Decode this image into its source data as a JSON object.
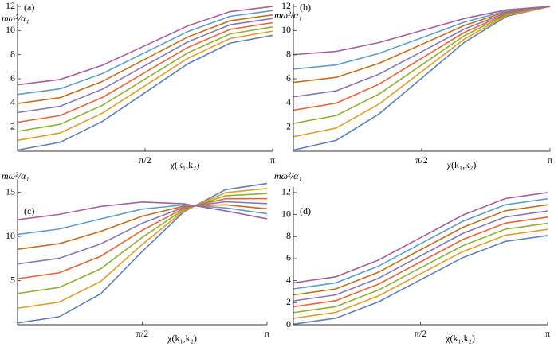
{
  "chart_data": [
    {
      "type": "line",
      "title": "(a)",
      "xlabel": "χ(k₁,k₂)",
      "ylabel": "mω²/α₁",
      "x": [
        0,
        0.5236,
        1.0472,
        1.5708,
        2.0944,
        2.618,
        3.1416
      ],
      "xlim": [
        0,
        3.1416
      ],
      "xticks": [
        {
          "value": 1.5708,
          "label": "π/2"
        },
        {
          "value": 3.1416,
          "label": "π"
        }
      ],
      "ylim": [
        0,
        12.2
      ],
      "yticks": [
        2,
        4,
        6,
        8,
        10,
        12
      ],
      "series": [
        {
          "color": "#5e81b5",
          "values": [
            0.1,
            0.74,
            2.48,
            4.85,
            7.23,
            8.96,
            9.6
          ]
        },
        {
          "color": "#e19c24",
          "values": [
            0.9,
            1.51,
            3.16,
            5.43,
            7.69,
            9.34,
            9.95
          ]
        },
        {
          "color": "#8fb032",
          "values": [
            1.65,
            2.23,
            3.81,
            5.98,
            8.14,
            9.72,
            10.3
          ]
        },
        {
          "color": "#eb6235",
          "values": [
            2.4,
            2.95,
            4.46,
            6.53,
            8.59,
            10.1,
            10.65
          ]
        },
        {
          "color": "#8778b3",
          "values": [
            3.2,
            3.72,
            5.15,
            7.1,
            9.05,
            10.48,
            11
          ]
        },
        {
          "color": "#c56e1a",
          "values": [
            3.95,
            4.44,
            5.79,
            7.63,
            9.46,
            10.81,
            11.3
          ]
        },
        {
          "color": "#5d9ec7",
          "values": [
            4.7,
            5.17,
            6.44,
            8.18,
            9.91,
            11.18,
            11.65
          ]
        },
        {
          "color": "#a5609d",
          "values": [
            5.5,
            5.94,
            7.13,
            8.75,
            10.38,
            11.57,
            12
          ]
        }
      ]
    },
    {
      "type": "line",
      "title": "(b)",
      "xlabel": "χ(k₁,k₂)",
      "ylabel": "mω²/α₁",
      "x": [
        0,
        0.5236,
        1.0472,
        1.5708,
        2.0944,
        2.618,
        3.1416
      ],
      "xlim": [
        0,
        3.1416
      ],
      "xticks": [
        {
          "value": 1.5708,
          "label": "π/2"
        },
        {
          "value": 3.1416,
          "label": "π"
        }
      ],
      "ylim": [
        0,
        12.2
      ],
      "yticks": [
        2,
        4,
        6,
        8,
        10,
        12
      ],
      "series": [
        {
          "color": "#5e81b5",
          "values": [
            0.1,
            0.9,
            3.08,
            6.05,
            9.03,
            11.2,
            12
          ]
        },
        {
          "color": "#e19c24",
          "values": [
            1.2,
            1.92,
            3.9,
            6.6,
            9.3,
            11.28,
            12
          ]
        },
        {
          "color": "#8fb032",
          "values": [
            2.3,
            2.95,
            4.73,
            7.15,
            9.58,
            11.35,
            12
          ]
        },
        {
          "color": "#eb6235",
          "values": [
            3.4,
            3.98,
            5.55,
            7.7,
            9.85,
            11.42,
            12
          ]
        },
        {
          "color": "#8778b3",
          "values": [
            4.5,
            5.0,
            6.38,
            8.25,
            10.13,
            11.5,
            12
          ]
        },
        {
          "color": "#c56e1a",
          "values": [
            5.7,
            6.12,
            7.28,
            8.85,
            10.43,
            11.58,
            12
          ]
        },
        {
          "color": "#5d9ec7",
          "values": [
            6.8,
            7.15,
            8.1,
            9.4,
            10.7,
            11.65,
            12
          ]
        },
        {
          "color": "#a5609d",
          "values": [
            8.0,
            8.27,
            9.0,
            10.0,
            11.0,
            11.73,
            12
          ]
        }
      ]
    },
    {
      "type": "line",
      "title": "(c)",
      "xlabel": "χ(k₁,k₂)",
      "ylabel": "mω²/α₁",
      "x": [
        0,
        0.5236,
        1.0472,
        1.5708,
        2.0944,
        2.618,
        3.1416
      ],
      "xlim": [
        0,
        3.1416
      ],
      "xticks": [
        {
          "value": 1.5708,
          "label": "π/2"
        },
        {
          "value": 3.1416,
          "label": "π"
        }
      ],
      "ylim": [
        0,
        16.5
      ],
      "yticks": [
        5,
        10,
        15
      ],
      "series": [
        {
          "color": "#5e81b5",
          "values": [
            0.2,
            0.9,
            3.5,
            8.3,
            12.8,
            15.3,
            16.0
          ]
        },
        {
          "color": "#e19c24",
          "values": [
            1.87,
            2.56,
            4.91,
            9.1,
            12.93,
            14.96,
            15.43
          ]
        },
        {
          "color": "#8fb032",
          "values": [
            3.54,
            4.22,
            6.33,
            9.9,
            13.06,
            14.61,
            14.86
          ]
        },
        {
          "color": "#eb6235",
          "values": [
            5.22,
            5.88,
            7.75,
            10.7,
            13.19,
            14.27,
            14.28
          ]
        },
        {
          "color": "#8778b3",
          "values": [
            6.88,
            7.52,
            9.15,
            11.5,
            13.31,
            13.93,
            13.72
          ]
        },
        {
          "color": "#c56e1a",
          "values": [
            8.55,
            9.18,
            10.57,
            12.3,
            13.44,
            13.59,
            13.14
          ]
        },
        {
          "color": "#5d9ec7",
          "values": [
            10.23,
            10.84,
            11.98,
            13.1,
            13.57,
            13.24,
            12.57
          ]
        },
        {
          "color": "#a5609d",
          "values": [
            11.9,
            12.5,
            13.4,
            13.9,
            13.7,
            12.9,
            12.0
          ]
        }
      ]
    },
    {
      "type": "line",
      "title": "(d)",
      "xlabel": "χ(k₁,k₂)",
      "ylabel": "mω²/α₁",
      "x": [
        0,
        0.5236,
        1.0472,
        1.5708,
        2.0944,
        2.618,
        3.1416
      ],
      "xlim": [
        0,
        3.1416
      ],
      "xticks": [
        {
          "value": 1.5708,
          "label": "π/2"
        },
        {
          "value": 3.1416,
          "label": "π"
        }
      ],
      "ylim": [
        0,
        12.5
      ],
      "yticks": [
        0,
        2,
        4,
        6,
        8,
        10,
        12
      ],
      "series": [
        {
          "color": "#5e81b5",
          "values": [
            0.05,
            0.59,
            2.06,
            4.08,
            6.09,
            7.56,
            8.1
          ]
        },
        {
          "color": "#e19c24",
          "values": [
            0.58,
            1.12,
            2.6,
            4.62,
            6.64,
            8.12,
            8.66
          ]
        },
        {
          "color": "#8fb032",
          "values": [
            1.1,
            1.64,
            3.13,
            5.16,
            7.18,
            8.67,
            9.21
          ]
        },
        {
          "color": "#eb6235",
          "values": [
            1.63,
            2.18,
            3.67,
            5.7,
            7.74,
            9.22,
            9.77
          ]
        },
        {
          "color": "#8778b3",
          "values": [
            2.16,
            2.71,
            4.2,
            6.25,
            8.29,
            9.78,
            10.33
          ]
        },
        {
          "color": "#c56e1a",
          "values": [
            2.7,
            3.25,
            4.75,
            6.8,
            8.84,
            10.34,
            10.89
          ]
        },
        {
          "color": "#5d9ec7",
          "values": [
            3.25,
            3.8,
            5.3,
            7.35,
            9.39,
            10.89,
            11.44
          ]
        },
        {
          "color": "#a5609d",
          "values": [
            3.8,
            4.35,
            5.85,
            7.9,
            9.95,
            11.45,
            12
          ]
        }
      ]
    }
  ]
}
